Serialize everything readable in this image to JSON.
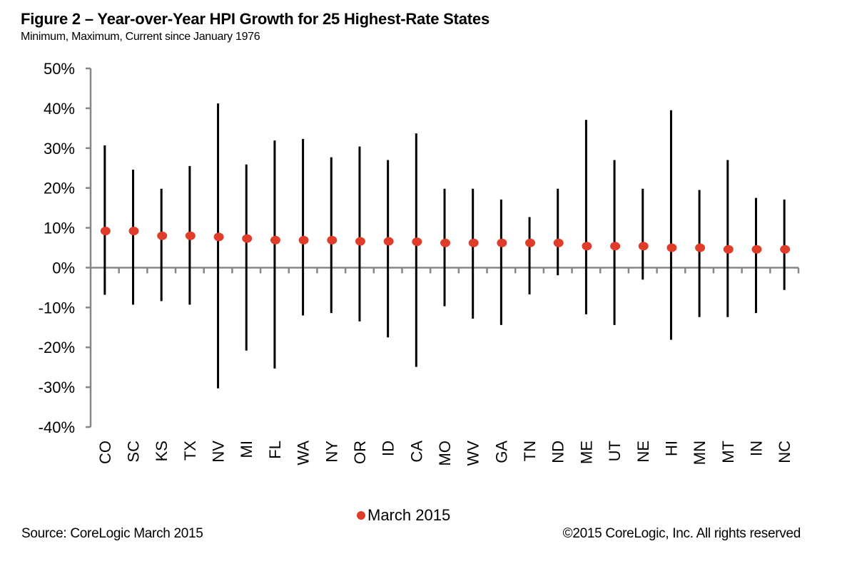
{
  "header": {
    "title": "Figure 2 – Year-over-Year HPI Growth for 25 Highest-Rate States",
    "subtitle": "Minimum, Maximum, Current since January 1976"
  },
  "footer": {
    "source": "Source: CoreLogic  March 2015",
    "copyright": "©2015 CoreLogic, Inc. All rights reserved"
  },
  "chart_data": {
    "type": "scatter",
    "subtype": "high-low range with current-value marker",
    "title": "Figure 2 – Year-over-Year HPI Growth for 25 Highest-Rate States",
    "subtitle": "Minimum, Maximum, Current since January 1976",
    "xlabel": "",
    "ylabel": "",
    "ylim": [
      -40,
      50
    ],
    "yticks": [
      50,
      40,
      30,
      20,
      10,
      0,
      -10,
      -20,
      -30,
      -40
    ],
    "ytick_labels": [
      "50%",
      "40%",
      "30%",
      "20%",
      "10%",
      "0%",
      "-10%",
      "-20%",
      "-30%",
      "-40%"
    ],
    "grid": false,
    "legend": {
      "position": "bottom-center",
      "entries": [
        {
          "label": "March 2015",
          "color": "#e03c2a",
          "marker": "circle"
        }
      ]
    },
    "colors": {
      "range_line": "#000000",
      "marker": "#e03c2a",
      "axis": "#868686"
    },
    "categories": [
      "CO",
      "SC",
      "KS",
      "TX",
      "NV",
      "MI",
      "FL",
      "WA",
      "NY",
      "OR",
      "ID",
      "CA",
      "MO",
      "WV",
      "GA",
      "TN",
      "ND",
      "ME",
      "UT",
      "NE",
      "HI",
      "MN",
      "MT",
      "IN",
      "NC"
    ],
    "series": [
      {
        "name": "Maximum",
        "values": [
          30.7,
          24.6,
          19.8,
          25.5,
          41.2,
          25.9,
          31.9,
          32.3,
          27.7,
          30.4,
          27.0,
          33.7,
          19.8,
          19.8,
          17.1,
          12.7,
          19.8,
          37.1,
          27.0,
          19.8,
          39.5,
          19.5,
          27.0,
          17.5,
          17.1
        ]
      },
      {
        "name": "Minimum",
        "values": [
          -6.8,
          -9.3,
          -8.4,
          -9.3,
          -30.3,
          -20.8,
          -25.3,
          -12.0,
          -11.4,
          -13.5,
          -17.5,
          -24.9,
          -9.7,
          -12.8,
          -14.4,
          -6.7,
          -1.9,
          -11.7,
          -14.4,
          -3.0,
          -18.1,
          -12.4,
          -12.4,
          -11.4,
          -5.6
        ]
      },
      {
        "name": "March 2015",
        "values": [
          9.2,
          9.2,
          8.0,
          8.0,
          7.7,
          7.3,
          6.9,
          6.9,
          6.9,
          6.6,
          6.6,
          6.5,
          6.2,
          6.2,
          6.2,
          6.2,
          6.2,
          5.4,
          5.4,
          5.4,
          5.0,
          5.0,
          4.6,
          4.6,
          4.6
        ]
      }
    ]
  }
}
